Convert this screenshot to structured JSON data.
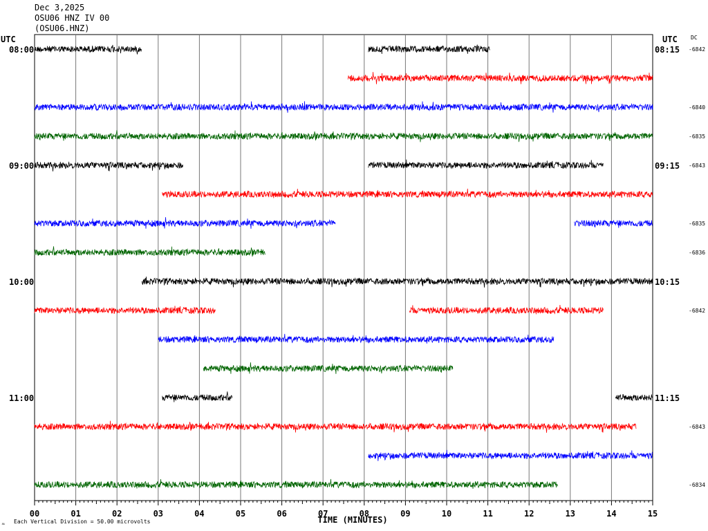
{
  "header": {
    "date": "Dec 3,2025",
    "station": "OSU06 HNZ IV 00",
    "code": "(OSU06.HNZ)"
  },
  "chart_data": {
    "type": "line",
    "title": "OSU06 HNZ IV 00",
    "xlabel": "TIME (MINUTES)",
    "x_ticks": [
      "00",
      "01",
      "02",
      "03",
      "04",
      "05",
      "06",
      "07",
      "08",
      "09",
      "10",
      "11",
      "12",
      "13",
      "14",
      "15"
    ],
    "xlim": [
      0,
      15
    ],
    "utc_left": "UTC",
    "utc_right": "UTC",
    "dc_label": "DC",
    "footer_note": "Each Vertical Division =   50.00 microvolts",
    "footer_mark": "ㅆ",
    "hour_labels": [
      {
        "row": 0,
        "left": "08:00",
        "right": "08:15"
      },
      {
        "row": 4,
        "left": "09:00",
        "right": "09:15"
      },
      {
        "row": 8,
        "left": "10:00",
        "right": "10:15"
      },
      {
        "row": 12,
        "left": "11:00",
        "right": "11:15"
      }
    ],
    "dc_values": [
      {
        "row": 0,
        "value": "-6842"
      },
      {
        "row": 2,
        "value": "-6840"
      },
      {
        "row": 3,
        "value": "-6835"
      },
      {
        "row": 4,
        "value": "-6843"
      },
      {
        "row": 6,
        "value": "-6835"
      },
      {
        "row": 7,
        "value": "-6836"
      },
      {
        "row": 9,
        "value": "-6842"
      },
      {
        "row": 13,
        "value": "-6843"
      },
      {
        "row": 15,
        "value": "-6834"
      }
    ],
    "colors": [
      "#000000",
      "#ff0000",
      "#0000ff",
      "#006400"
    ],
    "traces": [
      {
        "row": 0,
        "color": "#000000",
        "segments": [
          [
            0,
            2.6
          ],
          [
            8.1,
            11.05
          ]
        ]
      },
      {
        "row": 1,
        "color": "#ff0000",
        "segments": [
          [
            7.6,
            15
          ]
        ]
      },
      {
        "row": 2,
        "color": "#0000ff",
        "segments": [
          [
            0,
            15
          ]
        ]
      },
      {
        "row": 3,
        "color": "#006400",
        "segments": [
          [
            0,
            15
          ]
        ]
      },
      {
        "row": 4,
        "color": "#000000",
        "segments": [
          [
            0,
            3.6
          ],
          [
            8.1,
            13.8
          ]
        ]
      },
      {
        "row": 5,
        "color": "#ff0000",
        "segments": [
          [
            3.1,
            15
          ]
        ]
      },
      {
        "row": 6,
        "color": "#0000ff",
        "segments": [
          [
            0,
            7.3
          ],
          [
            13.1,
            15
          ]
        ]
      },
      {
        "row": 7,
        "color": "#006400",
        "segments": [
          [
            0,
            5.6
          ]
        ]
      },
      {
        "row": 8,
        "color": "#000000",
        "segments": [
          [
            2.6,
            15
          ]
        ]
      },
      {
        "row": 9,
        "color": "#ff0000",
        "segments": [
          [
            0,
            4.4
          ],
          [
            9.1,
            13.8
          ]
        ]
      },
      {
        "row": 10,
        "color": "#0000ff",
        "segments": [
          [
            3.0,
            12.6
          ]
        ]
      },
      {
        "row": 11,
        "color": "#006400",
        "segments": [
          [
            4.1,
            10.15
          ]
        ]
      },
      {
        "row": 12,
        "color": "#000000",
        "segments": [
          [
            3.1,
            4.8
          ],
          [
            14.1,
            15
          ]
        ]
      },
      {
        "row": 13,
        "color": "#ff0000",
        "segments": [
          [
            0,
            14.6
          ]
        ]
      },
      {
        "row": 14,
        "color": "#0000ff",
        "segments": [
          [
            8.1,
            15
          ]
        ]
      },
      {
        "row": 15,
        "color": "#006400",
        "segments": [
          [
            0,
            12.7
          ]
        ]
      }
    ]
  }
}
